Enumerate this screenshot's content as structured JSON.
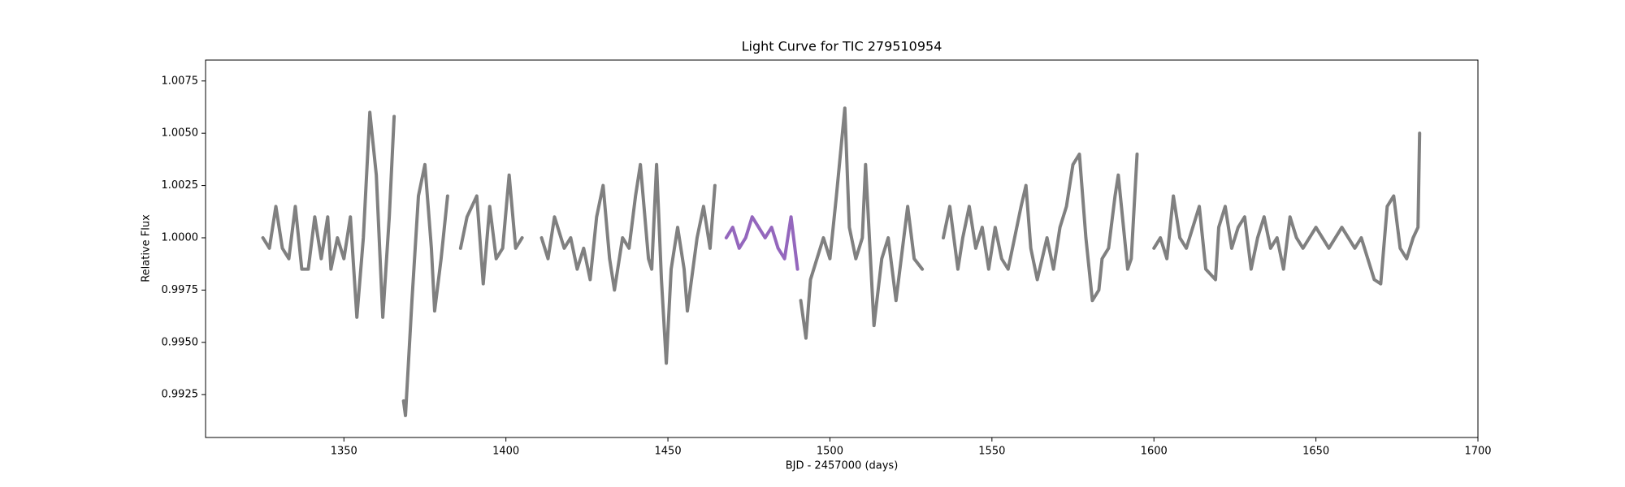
{
  "chart_data": {
    "type": "line",
    "title": "Light Curve for TIC 279510954",
    "xlabel": "BJD - 2457000 (days)",
    "ylabel": "Relative Flux",
    "xlim": [
      1307.3,
      1700
    ],
    "ylim": [
      0.99045,
      1.0085
    ],
    "xticks": [
      1350,
      1400,
      1450,
      1500,
      1550,
      1600,
      1650,
      1700
    ],
    "yticks": [
      {
        "value": 0.9925,
        "label": "0.9925"
      },
      {
        "value": 0.995,
        "label": "0.9950"
      },
      {
        "value": 0.9975,
        "label": "0.9975"
      },
      {
        "value": 1,
        "label": "1.0000"
      },
      {
        "value": 1.0025,
        "label": "1.0025"
      },
      {
        "value": 1.005,
        "label": "1.0050"
      },
      {
        "value": 1.0075,
        "label": "1.0075"
      }
    ],
    "series": [
      {
        "color": "#808080",
        "x": [
          1325,
          1327,
          1329,
          1331,
          1333,
          1335,
          1337,
          1339,
          1341,
          1343,
          1345,
          1346,
          1348,
          1350,
          1352,
          1354,
          1356,
          1358,
          1360,
          1362,
          1364,
          1365.5,
          1367,
          1368.4,
          1369,
          1371,
          1373,
          1375,
          1377,
          1378,
          1380,
          1382,
          1384,
          1386,
          1388,
          1391,
          1393,
          1395,
          1397,
          1399,
          1401,
          1403,
          1405,
          1408,
          1411,
          1413,
          1415,
          1418,
          1420,
          1422,
          1424,
          1426,
          1428,
          1430,
          1432,
          1433.5,
          1436,
          1438,
          1440,
          1441.5,
          1444,
          1445,
          1446.5,
          1448,
          1449.5,
          1451,
          1453,
          1455,
          1456,
          1459,
          1461,
          1463,
          1464.5,
          1466,
          1491,
          1492.6,
          1494,
          1496,
          1498,
          1500,
          1502,
          1504.6,
          1506,
          1508,
          1510,
          1511,
          1513.6,
          1516,
          1518,
          1520.4,
          1522,
          1524,
          1526,
          1528.5,
          1531,
          1535,
          1537,
          1539.5,
          1541,
          1543,
          1545,
          1547,
          1549,
          1551,
          1553,
          1555,
          1557,
          1559,
          1560.5,
          1562,
          1564,
          1567,
          1569,
          1571,
          1573,
          1575,
          1577,
          1579,
          1581,
          1583,
          1584,
          1586,
          1588,
          1589,
          1591.9,
          1593,
          1594.8,
          1597,
          1600,
          1602,
          1604,
          1606,
          1608,
          1610,
          1612,
          1614,
          1616,
          1619,
          1620,
          1622,
          1624,
          1626,
          1628,
          1630,
          1632,
          1634,
          1636,
          1638,
          1640,
          1642,
          1644,
          1646,
          1648,
          1650,
          1652,
          1654,
          1656,
          1658,
          1660,
          1662,
          1664,
          1666,
          1668,
          1670,
          1672,
          1674,
          1676,
          1678,
          1680,
          1681.5,
          1682
        ],
        "values": [
          1.0,
          0.9995,
          1.0015,
          0.9995,
          0.999,
          1.0015,
          0.9985,
          0.9985,
          1.001,
          0.999,
          1.001,
          0.9985,
          1.0,
          0.999,
          1.001,
          0.9962,
          1.0,
          1.006,
          1.003,
          0.9962,
          1.001,
          1.0058,
          null,
          0.9922,
          0.9915,
          0.997,
          1.002,
          1.0035,
          0.9995,
          0.9965,
          0.999,
          1.002,
          null,
          0.9995,
          1.001,
          1.002,
          0.9978,
          1.0015,
          0.999,
          0.9995,
          1.003,
          0.9995,
          1.0,
          null,
          1.0,
          0.999,
          1.001,
          0.9995,
          1.0,
          0.9985,
          0.9995,
          0.998,
          1.001,
          1.0025,
          0.999,
          0.9975,
          1.0,
          0.9995,
          1.002,
          1.0035,
          0.999,
          0.9985,
          1.0035,
          0.998,
          0.994,
          0.9985,
          1.0005,
          0.9985,
          0.9965,
          1.0,
          1.0015,
          0.9995,
          1.0025,
          null,
          0.997,
          0.9952,
          0.998,
          0.999,
          1.0,
          0.999,
          1.002,
          1.0062,
          1.0005,
          0.999,
          1.0,
          1.0035,
          0.9958,
          0.999,
          1.0,
          0.997,
          0.999,
          1.0015,
          0.999,
          0.9985,
          null,
          1.0,
          1.0015,
          0.9985,
          1.0,
          1.0015,
          0.9995,
          1.0005,
          0.9985,
          1.0005,
          0.999,
          0.9985,
          1.0,
          1.0015,
          1.0025,
          0.9995,
          0.998,
          1.0,
          0.9985,
          1.0005,
          1.0015,
          1.0035,
          1.004,
          1.0,
          0.997,
          0.9975,
          0.999,
          0.9995,
          1.002,
          1.003,
          0.9985,
          0.999,
          1.004,
          null,
          0.9995,
          1.0,
          0.999,
          1.002,
          1.0,
          0.9995,
          1.0005,
          1.0015,
          0.9985,
          0.998,
          1.0005,
          1.0015,
          0.9995,
          1.0005,
          1.001,
          0.9985,
          1.0,
          1.001,
          0.9995,
          1.0,
          0.9985,
          1.001,
          1.0,
          0.9995,
          1.0,
          1.0005,
          1.0,
          0.9995,
          1.0,
          1.0005,
          1.0,
          0.9995,
          1.0,
          0.999,
          0.998,
          0.9978,
          1.0015,
          1.002,
          0.9995,
          0.999,
          1.0,
          1.0005,
          1.005
        ]
      },
      {
        "color": "#9467bd",
        "x": [
          1468,
          1470,
          1472,
          1474,
          1476,
          1478,
          1480,
          1482,
          1484,
          1486,
          1488,
          1490
        ],
        "values": [
          1.0,
          1.0005,
          0.9995,
          1.0,
          1.001,
          1.0005,
          1.0,
          1.0005,
          0.9995,
          0.999,
          1.001,
          0.9985
        ]
      }
    ]
  }
}
